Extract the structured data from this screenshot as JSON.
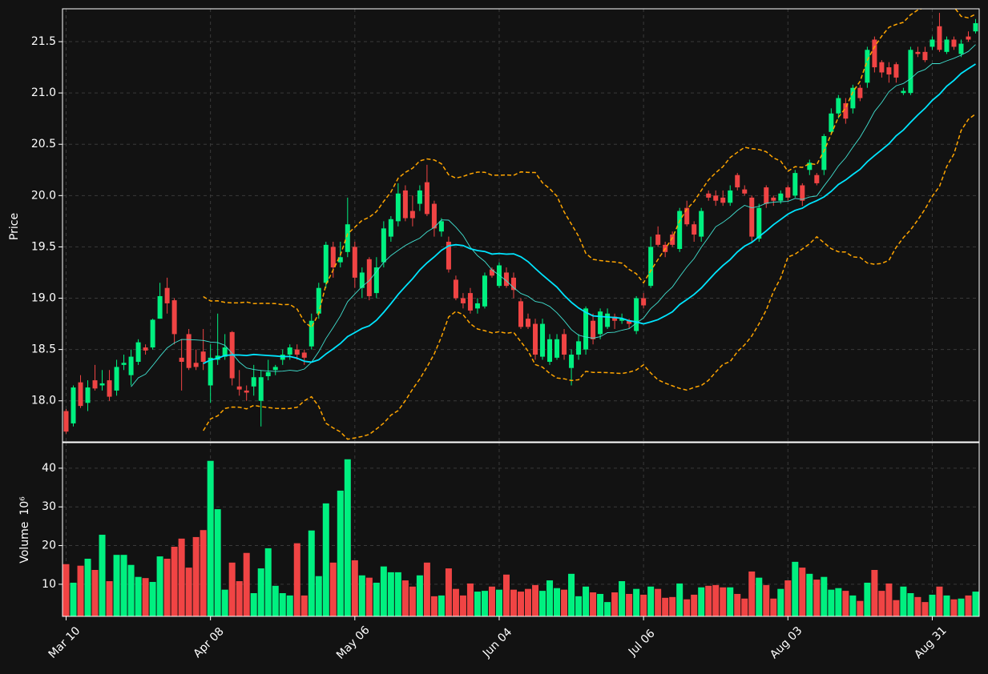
{
  "chart_data": {
    "type": "candlestick",
    "categories": [
      "Mar 10",
      null,
      null,
      null,
      null,
      null,
      null,
      null,
      null,
      null,
      null,
      null,
      null,
      null,
      null,
      null,
      null,
      null,
      null,
      null,
      "Apr 08",
      null,
      null,
      null,
      null,
      null,
      null,
      null,
      null,
      null,
      null,
      null,
      null,
      null,
      null,
      null,
      null,
      null,
      null,
      null,
      "May 06",
      null,
      null,
      null,
      null,
      null,
      null,
      null,
      null,
      null,
      null,
      null,
      null,
      null,
      null,
      null,
      null,
      null,
      null,
      null,
      "Jun 04",
      null,
      null,
      null,
      null,
      null,
      null,
      null,
      null,
      null,
      null,
      null,
      null,
      null,
      null,
      null,
      null,
      null,
      null,
      null,
      "Jul 06",
      null,
      null,
      null,
      null,
      null,
      null,
      null,
      null,
      null,
      null,
      null,
      null,
      null,
      null,
      null,
      null,
      null,
      null,
      null,
      "Aug 03",
      null,
      null,
      null,
      null,
      null,
      null,
      null,
      null,
      null,
      null,
      null,
      null,
      null,
      null,
      null,
      null,
      null,
      null,
      null,
      "Aug 31",
      null,
      null,
      null,
      null,
      null,
      null
    ],
    "open": [
      17.9,
      17.78,
      18.18,
      17.98,
      18.2,
      18.15,
      18.2,
      18.1,
      18.35,
      18.25,
      18.38,
      18.52,
      18.52,
      18.8,
      19.1,
      18.98,
      18.42,
      18.65,
      18.37,
      18.48,
      18.15,
      18.4,
      18.43,
      18.67,
      18.14,
      18.1,
      18.14,
      18.0,
      18.24,
      18.3,
      18.4,
      18.45,
      18.5,
      18.47,
      18.53,
      18.85,
      19.15,
      19.5,
      19.35,
      19.45,
      19.5,
      19.1,
      19.38,
      19.05,
      19.35,
      19.6,
      19.75,
      20.05,
      19.85,
      19.92,
      20.13,
      19.92,
      19.65,
      19.55,
      19.18,
      19.0,
      19.05,
      18.9,
      18.92,
      19.28,
      19.12,
      19.25,
      19.2,
      18.97,
      18.8,
      18.75,
      18.43,
      18.38,
      18.42,
      18.65,
      18.32,
      18.45,
      18.5,
      18.78,
      18.65,
      18.72,
      18.82,
      18.78,
      18.78,
      18.68,
      19.0,
      19.12,
      19.62,
      19.52,
      19.62,
      19.48,
      19.88,
      19.72,
      19.6,
      20.02,
      20.0,
      19.98,
      19.93,
      20.2,
      20.06,
      19.98,
      19.58,
      20.08,
      19.98,
      19.95,
      20.08,
      20.0,
      20.1,
      20.25,
      20.2,
      20.25,
      20.62,
      20.8,
      20.9,
      20.85,
      21.05,
      21.1,
      21.52,
      21.3,
      21.25,
      21.28,
      21.0,
      21.0,
      21.4,
      21.4,
      21.45,
      21.65,
      21.4,
      21.52,
      21.38,
      21.55,
      21.6
    ],
    "high": [
      17.92,
      18.15,
      18.25,
      18.2,
      18.35,
      18.3,
      18.3,
      18.4,
      18.45,
      18.5,
      18.6,
      18.55,
      18.8,
      19.15,
      19.2,
      19.0,
      18.6,
      18.7,
      18.5,
      18.7,
      18.55,
      18.85,
      18.65,
      18.68,
      18.3,
      18.15,
      18.35,
      18.3,
      18.4,
      18.35,
      18.5,
      18.55,
      18.55,
      18.5,
      18.85,
      19.15,
      19.55,
      19.55,
      19.55,
      19.98,
      19.55,
      19.3,
      19.4,
      19.4,
      19.75,
      19.8,
      20.12,
      20.1,
      20.0,
      20.1,
      20.3,
      19.95,
      19.78,
      19.6,
      19.22,
      19.05,
      19.1,
      19.0,
      19.25,
      19.3,
      19.35,
      19.3,
      19.25,
      19.0,
      18.85,
      18.8,
      18.8,
      18.65,
      18.65,
      18.7,
      18.5,
      18.65,
      18.92,
      18.85,
      18.9,
      18.9,
      18.85,
      18.85,
      18.8,
      19.02,
      19.05,
      19.6,
      19.7,
      19.55,
      19.65,
      19.88,
      19.95,
      19.75,
      19.88,
      20.05,
      20.05,
      20.05,
      20.1,
      20.22,
      20.1,
      20.0,
      19.92,
      20.1,
      20.0,
      20.05,
      20.1,
      20.25,
      20.12,
      20.35,
      20.22,
      20.6,
      20.85,
      20.98,
      20.95,
      21.08,
      21.08,
      21.45,
      21.55,
      21.32,
      21.3,
      21.3,
      21.05,
      21.45,
      21.45,
      21.45,
      21.55,
      21.78,
      21.55,
      21.55,
      21.52,
      21.6,
      21.72
    ],
    "low": [
      17.68,
      17.75,
      17.93,
      17.9,
      18.1,
      18.1,
      18.0,
      18.05,
      18.3,
      18.15,
      18.35,
      18.45,
      18.5,
      18.8,
      18.85,
      18.55,
      18.1,
      18.3,
      18.3,
      18.3,
      17.98,
      18.35,
      18.4,
      18.15,
      18.05,
      18.0,
      18.05,
      17.75,
      18.2,
      18.25,
      18.35,
      18.4,
      18.4,
      18.35,
      18.5,
      18.8,
      19.1,
      19.2,
      19.3,
      19.4,
      19.1,
      19.0,
      18.98,
      19.0,
      19.3,
      19.55,
      19.7,
      19.75,
      19.7,
      19.85,
      19.8,
      19.6,
      19.6,
      19.25,
      18.98,
      18.9,
      18.85,
      18.85,
      18.9,
      19.2,
      19.1,
      19.1,
      19.0,
      18.7,
      18.7,
      18.4,
      18.4,
      18.35,
      18.4,
      18.4,
      18.15,
      18.4,
      18.45,
      18.55,
      18.6,
      18.7,
      18.7,
      18.75,
      18.7,
      18.65,
      18.9,
      19.1,
      19.5,
      19.4,
      19.5,
      19.45,
      19.7,
      19.55,
      19.55,
      19.95,
      19.9,
      19.9,
      19.9,
      20.05,
      20.0,
      19.55,
      19.55,
      19.88,
      19.9,
      19.92,
      19.95,
      19.98,
      19.9,
      20.2,
      20.1,
      20.2,
      20.6,
      20.75,
      20.7,
      20.8,
      20.92,
      21.05,
      21.2,
      21.15,
      21.1,
      21.1,
      20.98,
      20.98,
      21.35,
      21.3,
      21.42,
      21.4,
      21.38,
      21.42,
      21.35,
      21.5,
      21.58
    ],
    "close": [
      17.7,
      18.13,
      17.95,
      18.13,
      18.12,
      18.17,
      18.04,
      18.33,
      18.37,
      18.43,
      18.57,
      18.49,
      18.79,
      19.02,
      18.95,
      18.65,
      18.38,
      18.32,
      18.33,
      18.38,
      18.42,
      18.44,
      18.52,
      18.22,
      18.11,
      18.08,
      18.23,
      18.23,
      18.28,
      18.33,
      18.45,
      18.52,
      18.45,
      18.42,
      18.78,
      19.1,
      19.52,
      19.3,
      19.4,
      19.72,
      19.2,
      19.25,
      19.02,
      19.3,
      19.68,
      19.77,
      20.02,
      19.78,
      19.78,
      20.05,
      19.82,
      19.68,
      19.75,
      19.28,
      19.0,
      18.95,
      18.88,
      18.95,
      19.22,
      19.22,
      19.32,
      19.12,
      19.08,
      18.72,
      18.72,
      18.45,
      18.75,
      18.6,
      18.6,
      18.45,
      18.45,
      18.58,
      18.9,
      18.6,
      18.87,
      18.85,
      18.78,
      18.8,
      18.75,
      19.0,
      18.93,
      19.5,
      19.52,
      19.45,
      19.52,
      19.85,
      19.72,
      19.62,
      19.85,
      19.98,
      19.95,
      19.93,
      20.05,
      20.08,
      20.02,
      19.6,
      19.88,
      19.92,
      19.95,
      20.02,
      19.98,
      20.22,
      19.95,
      20.32,
      20.12,
      20.58,
      20.8,
      20.95,
      20.75,
      21.05,
      20.95,
      21.42,
      21.25,
      21.2,
      21.18,
      21.15,
      21.02,
      21.42,
      21.38,
      21.32,
      21.52,
      21.42,
      21.52,
      21.45,
      21.48,
      21.52,
      21.68
    ],
    "volume": [
      15.2,
      10.4,
      14.8,
      16.6,
      13.7,
      22.8,
      10.8,
      17.6,
      17.6,
      15.0,
      11.9,
      11.6,
      10.6,
      17.2,
      16.6,
      19.7,
      21.8,
      14.3,
      22.2,
      24.0,
      41.9,
      29.4,
      8.6,
      15.6,
      10.8,
      18.1,
      7.7,
      14.1,
      19.3,
      9.6,
      7.7,
      7.1,
      20.6,
      7.1,
      23.9,
      12.1,
      30.9,
      15.6,
      34.2,
      42.3,
      16.2,
      12.3,
      11.7,
      10.4,
      14.6,
      13.1,
      13.1,
      11.0,
      9.4,
      12.3,
      15.6,
      6.9,
      7.1,
      14.1,
      8.8,
      7.1,
      10.2,
      8.1,
      8.3,
      9.4,
      8.6,
      12.5,
      8.6,
      8.1,
      8.8,
      9.8,
      8.3,
      11.0,
      9.0,
      8.6,
      12.7,
      6.9,
      9.4,
      7.9,
      7.5,
      5.4,
      7.9,
      10.8,
      7.5,
      8.8,
      7.3,
      9.4,
      8.8,
      6.5,
      6.7,
      10.2,
      6.1,
      7.3,
      9.2,
      9.6,
      9.8,
      9.2,
      9.2,
      7.5,
      6.3,
      13.3,
      11.7,
      9.8,
      6.3,
      8.8,
      11.0,
      15.8,
      14.3,
      12.7,
      11.2,
      11.9,
      8.6,
      9.0,
      8.3,
      7.1,
      5.7,
      10.4,
      13.7,
      8.3,
      10.2,
      5.9,
      9.4,
      7.7,
      6.7,
      5.4,
      7.3,
      9.4,
      7.1,
      6.1,
      6.3,
      7.1,
      8.1
    ],
    "ylabel": "Price",
    "volume_ylabel": "Volume",
    "volume_exponent": "10⁶",
    "ylim": [
      17.6,
      21.82
    ],
    "yticks": [
      {
        "value": 18,
        "label": "18.0"
      },
      18.5,
      {
        "value": 19,
        "label": "19.0"
      },
      19.5,
      {
        "value": 20,
        "label": "20.0"
      },
      20.5,
      {
        "value": 21,
        "label": "21.0"
      },
      21.5
    ],
    "volume_ylim": [
      1.7,
      46.6
    ],
    "volume_yticks": [
      10,
      20,
      30,
      40
    ],
    "up_color": "#00f080",
    "down_color": "#f04444",
    "moving_averages": [
      {
        "period": 10,
        "color": "#40e0d0",
        "width": 0.9
      },
      {
        "period": 20,
        "color": "#00e5ff",
        "width": 1.8
      }
    ],
    "bollinger": {
      "period": 20,
      "std": 2,
      "color": "#ffa500"
    },
    "grid": true
  }
}
